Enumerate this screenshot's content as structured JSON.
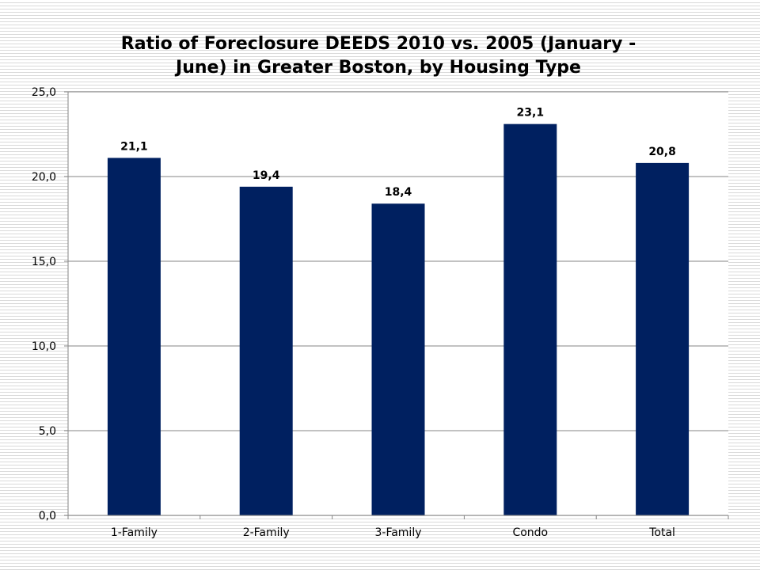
{
  "chart_data": {
    "type": "bar",
    "title": "Ratio of Foreclosure DEEDS 2010 vs. 2005 (January - June) in Greater Boston, by Housing Type",
    "title_lines": [
      "Ratio of Foreclosure DEEDS 2010 vs. 2005 (January -",
      "June) in Greater Boston, by Housing Type"
    ],
    "categories": [
      "1-Family",
      "2-Family",
      "3-Family",
      "Condo",
      "Total"
    ],
    "values": [
      21.1,
      19.4,
      18.4,
      23.1,
      20.8
    ],
    "data_labels": [
      "21,1",
      "19,4",
      "18,4",
      "23,1",
      "20,8"
    ],
    "y_ticks": [
      0,
      5,
      10,
      15,
      20,
      25
    ],
    "y_tick_labels": [
      "0,0",
      "5,0",
      "10,0",
      "15,0",
      "20,0",
      "25,0"
    ],
    "ylim": [
      0,
      25
    ],
    "xlabel": "",
    "ylabel": "",
    "grid": true,
    "legend": "none",
    "colors": {
      "bar": "#002060",
      "grid": "#868686",
      "axis": "#868686"
    }
  }
}
